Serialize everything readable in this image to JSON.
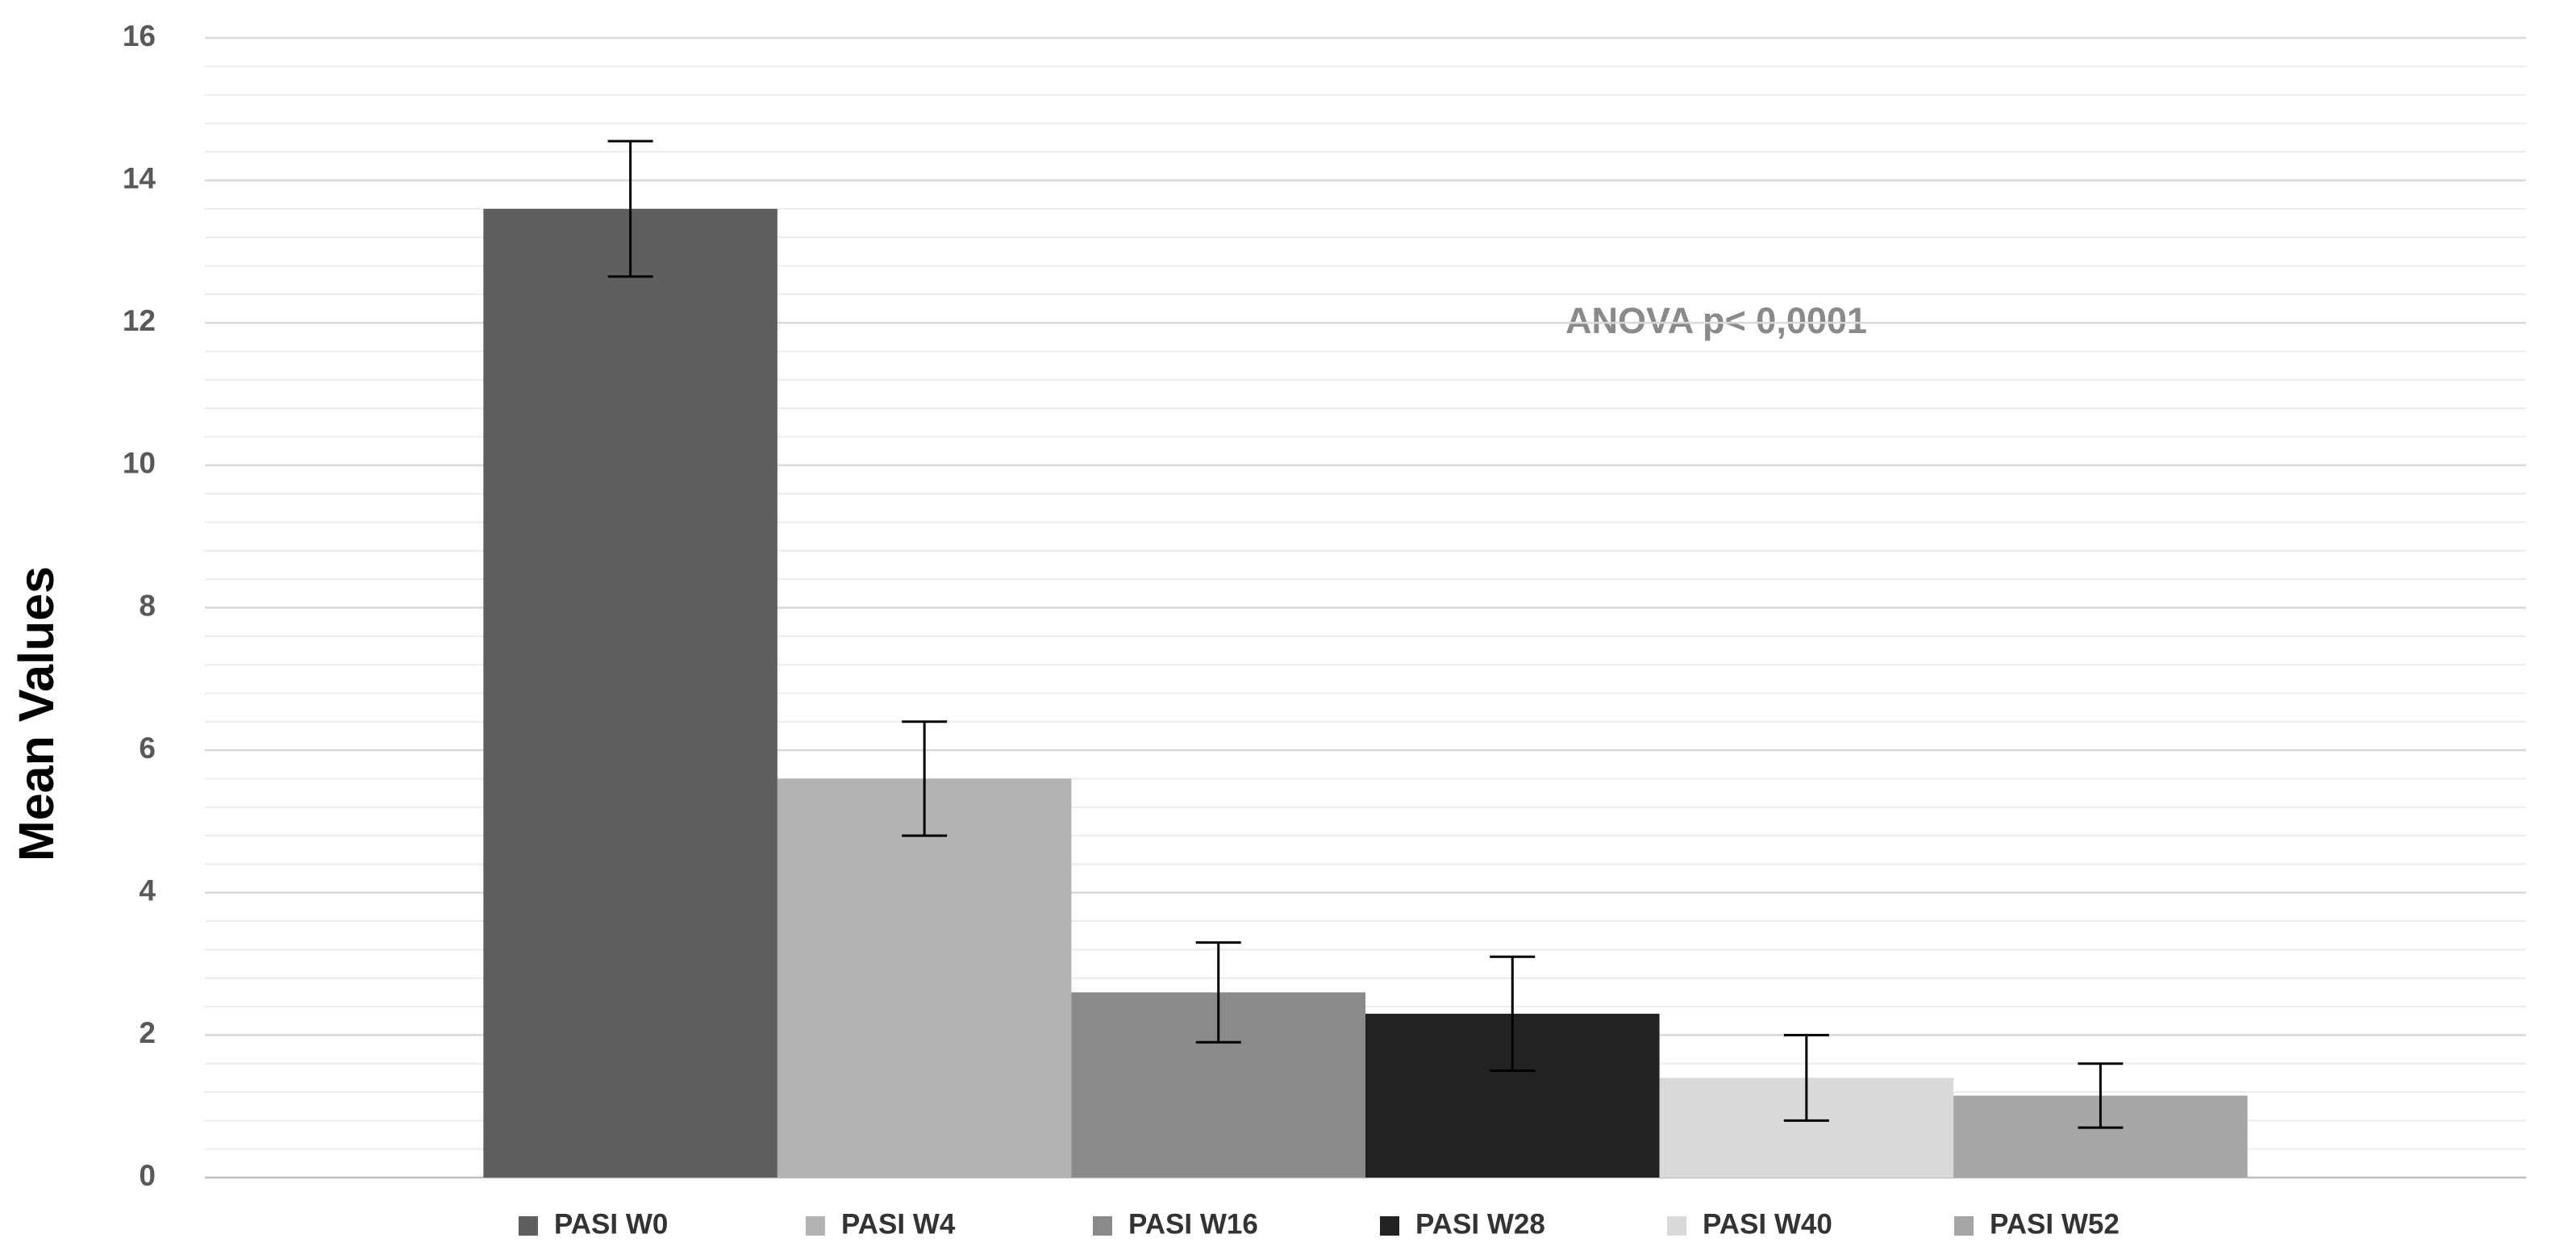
{
  "chart_data": {
    "type": "bar",
    "y_label": "Mean Values",
    "annotation": "ANOVA p< 0,0001",
    "series": [
      {
        "name": "PASI W0",
        "color": "#5f5f5f",
        "values": [
          13.6
        ],
        "errors": [
          0.95
        ]
      },
      {
        "name": "PASI W4",
        "color": "#b3b3b3",
        "values": [
          5.6
        ],
        "errors": [
          0.8
        ]
      },
      {
        "name": "PASI W16",
        "color": "#8a8a8a",
        "values": [
          2.6
        ],
        "errors": [
          0.7
        ]
      },
      {
        "name": "PASI W28",
        "color": "#222222",
        "values": [
          2.3
        ],
        "errors": [
          0.8
        ]
      },
      {
        "name": "PASI W40",
        "color": "#d9d9d9",
        "values": [
          1.4
        ],
        "errors": [
          0.6
        ]
      },
      {
        "name": "PASI W52",
        "color": "#a6a6a6",
        "values": [
          1.15
        ],
        "errors": [
          0.45
        ]
      }
    ],
    "ylim": [
      0,
      16
    ],
    "yticks": [
      0,
      2,
      4,
      6,
      8,
      10,
      12,
      14,
      16
    ],
    "grid": true,
    "minor_grid": true,
    "legend": "bottom"
  }
}
